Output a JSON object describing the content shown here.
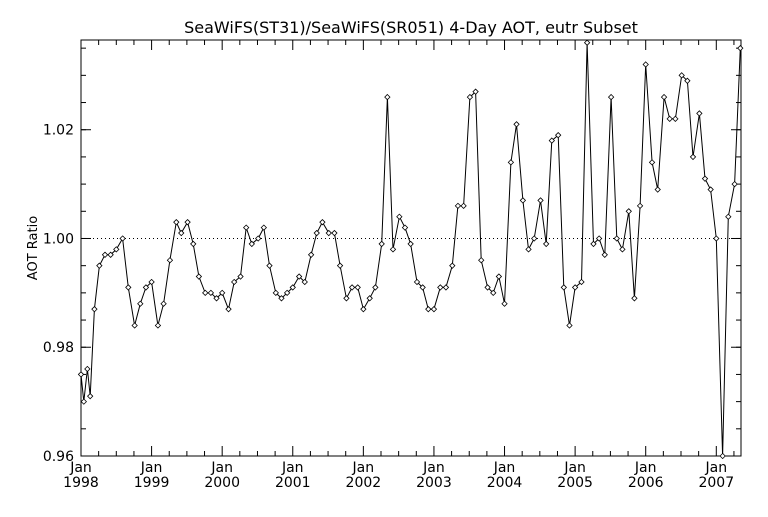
{
  "chart_data": {
    "type": "line",
    "title": "SeaWiFS(ST31)/SeaWiFS(SR051) 4-Day AOT, eutr Subset",
    "xlabel": "",
    "ylabel": "AOT Ratio",
    "xlim": [
      1998.0,
      2007.35
    ],
    "ylim": [
      0.96,
      1.0365
    ],
    "y_ticks": [
      "0.96",
      "0.98",
      "1.00",
      "1.02"
    ],
    "x_ticks": [
      {
        "month": "Jan",
        "year": "1998"
      },
      {
        "month": "Jan",
        "year": "1999"
      },
      {
        "month": "Jan",
        "year": "2000"
      },
      {
        "month": "Jan",
        "year": "2001"
      },
      {
        "month": "Jan",
        "year": "2002"
      },
      {
        "month": "Jan",
        "year": "2003"
      },
      {
        "month": "Jan",
        "year": "2004"
      },
      {
        "month": "Jan",
        "year": "2005"
      },
      {
        "month": "Jan",
        "year": "2006"
      },
      {
        "month": "Jan",
        "year": "2007"
      }
    ],
    "reference_line": 1.0,
    "grid": false,
    "marker": "diamond",
    "series": [
      {
        "x": [
          1998.0,
          1998.04,
          1998.09,
          1998.13,
          1998.19,
          1998.26,
          1998.34,
          1998.42,
          1998.5,
          1998.59,
          1998.67,
          1998.76,
          1998.84,
          1998.92,
          1999.0,
          1999.09,
          1999.17,
          1999.26,
          1999.35,
          1999.42,
          1999.51,
          1999.59,
          1999.67,
          1999.76,
          1999.84,
          1999.92,
          2000.0,
          2000.09,
          2000.17,
          2000.26,
          2000.34,
          2000.42,
          2000.51,
          2000.59,
          2000.67,
          2000.76,
          2000.84,
          2000.92,
          2001.0,
          2001.09,
          2001.17,
          2001.26,
          2001.34,
          2001.42,
          2001.51,
          2001.59,
          2001.67,
          2001.76,
          2001.84,
          2001.92,
          2002.0,
          2002.09,
          2002.17,
          2002.26,
          2002.34,
          2002.42,
          2002.51,
          2002.59,
          2002.67,
          2002.76,
          2002.84,
          2002.92,
          2003.0,
          2003.09,
          2003.17,
          2003.26,
          2003.34,
          2003.42,
          2003.51,
          2003.59,
          2003.67,
          2003.76,
          2003.84,
          2003.92,
          2004.0,
          2004.09,
          2004.17,
          2004.26,
          2004.34,
          2004.42,
          2004.51,
          2004.59,
          2004.67,
          2004.76,
          2004.84,
          2004.92,
          2005.0,
          2005.09,
          2005.17,
          2005.26,
          2005.34,
          2005.42,
          2005.51,
          2005.59,
          2005.67,
          2005.76,
          2005.84,
          2005.92,
          2006.0,
          2006.09,
          2006.17,
          2006.26,
          2006.34,
          2006.42,
          2006.51,
          2006.59,
          2006.67,
          2006.76,
          2006.84,
          2006.92,
          2007.0,
          2007.09,
          2007.17,
          2007.26,
          2007.34
        ],
        "values": [
          0.975,
          0.97,
          0.976,
          0.971,
          0.987,
          0.995,
          0.997,
          0.997,
          0.998,
          1.0,
          0.991,
          0.984,
          0.988,
          0.991,
          0.992,
          0.984,
          0.988,
          0.996,
          1.003,
          1.001,
          1.003,
          0.999,
          0.993,
          0.99,
          0.99,
          0.989,
          0.99,
          0.987,
          0.992,
          0.993,
          1.002,
          0.999,
          1.0,
          1.002,
          0.995,
          0.99,
          0.989,
          0.99,
          0.991,
          0.993,
          0.992,
          0.997,
          1.001,
          1.003,
          1.001,
          1.001,
          0.995,
          0.989,
          0.991,
          0.991,
          0.987,
          0.989,
          0.991,
          0.999,
          1.026,
          0.998,
          1.004,
          1.002,
          0.999,
          0.992,
          0.991,
          0.987,
          0.987,
          0.991,
          0.991,
          0.995,
          1.006,
          1.006,
          1.026,
          1.027,
          0.996,
          0.991,
          0.99,
          0.993,
          0.988,
          1.014,
          1.021,
          1.007,
          0.998,
          1.0,
          1.007,
          0.999,
          1.018,
          1.019,
          0.991,
          0.984,
          0.991,
          0.992,
          1.036,
          0.999,
          1.0,
          0.997,
          1.026,
          1.0,
          0.998,
          1.005,
          0.989,
          1.006,
          1.032,
          1.014,
          1.009,
          1.026,
          1.022,
          1.022,
          1.03,
          1.029,
          1.015,
          1.023,
          1.011,
          1.009,
          1.0,
          0.96,
          1.004,
          1.01,
          1.035
        ]
      }
    ]
  }
}
